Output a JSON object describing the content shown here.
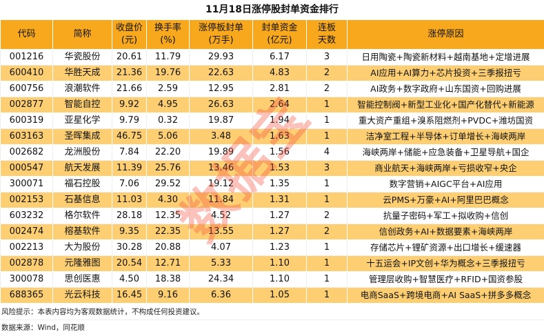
{
  "title": "11月18日涨停股封单资金排行",
  "columns": [
    "代码",
    "简称",
    "收盘价\n(元)",
    "换手率\n(%)",
    "涨停板封单\n(万手)",
    "封单资金\n(亿元)",
    "连板\n天数",
    "涨停原因"
  ],
  "rows": [
    [
      "001216",
      "华瓷股份",
      "20.61",
      "11.79",
      "29.93",
      "6.17",
      "3",
      "日用陶瓷+陶瓷新材料+越南基地+定增进展"
    ],
    [
      "600410",
      "华胜天成",
      "21.36",
      "19.76",
      "22.63",
      "4.83",
      "2",
      "AI应用+AI算力+芯片投资+三季报扭亏"
    ],
    [
      "600756",
      "浪潮软件",
      "21.66",
      "2.59",
      "12.95",
      "2.81",
      "2",
      "AI政务+数字政府+山东国资+回购进展"
    ],
    [
      "002877",
      "智能自控",
      "9.92",
      "4.95",
      "26.63",
      "2.64",
      "1",
      "智能控制阀+新型工业化+国产化替代+新能源"
    ],
    [
      "600319",
      "亚星化学",
      "9.79",
      "0.32",
      "19.87",
      "1.94",
      "1",
      "重大资产重组+溴系阻燃剂+PVDC+潍坊国资"
    ],
    [
      "603163",
      "圣晖集成",
      "46.75",
      "5.06",
      "3.48",
      "1.63",
      "1",
      "洁净室工程+半导体+订单增长+海峡两岸"
    ],
    [
      "002682",
      "龙洲股份",
      "7.84",
      "22.20",
      "19.89",
      "1.56",
      "4",
      "海峡两岸+储能+应急装备+卫星导航+国企"
    ],
    [
      "000547",
      "航天发展",
      "11.39",
      "25.76",
      "13.46",
      "1.53",
      "3",
      "商业航天+海峡两岸+亏损收窄+央企"
    ],
    [
      "300071",
      "福石控股",
      "7.06",
      "29.52",
      "19.12",
      "1.35",
      "1",
      "数字营销+AIGC平台+AI应用"
    ],
    [
      "002153",
      "石基信息",
      "11.03",
      "4.30",
      "11.84",
      "1.31",
      "1",
      "云PMS+万豪+AI+阿里巴巴概念"
    ],
    [
      "603232",
      "格尔软件",
      "28.18",
      "12.35",
      "4.52",
      "1.27",
      "2",
      "抗量子密码+军工+拟收购+信创"
    ],
    [
      "002474",
      "榕基软件",
      "9.35",
      "22.35",
      "13.55",
      "1.27",
      "2",
      "信创政务+AI+数据要素+海峡两岸"
    ],
    [
      "002213",
      "大为股份",
      "30.28",
      "20.88",
      "4.07",
      "1.23",
      "1",
      "存储芯片+锂矿资源+出口增长+缓速器"
    ],
    [
      "002878",
      "元隆雅图",
      "20.54",
      "12.71",
      "5.33",
      "1.10",
      "1",
      "十五运会+IP文创+华为概念+三季报扭亏"
    ],
    [
      "300078",
      "思创医惠",
      "4.50",
      "18.38",
      "24.34",
      "1.10",
      "1",
      "管理层收购+智慧医疗+RFID+国资参股"
    ],
    [
      "688365",
      "光云科技",
      "16.45",
      "9.16",
      "6.36",
      "1.05",
      "1",
      "电商SaaS+跨境电商+AI SaaS+拼多多概念"
    ]
  ],
  "risk_note": "风险提示：本表内容均为客观数据统计，不构成任何投资建议。",
  "source_note": "数据来源：Wind，同花顺",
  "watermark": "数据宝",
  "colors": {
    "header": "#F7A81D",
    "stripe": "#FDCF72"
  }
}
